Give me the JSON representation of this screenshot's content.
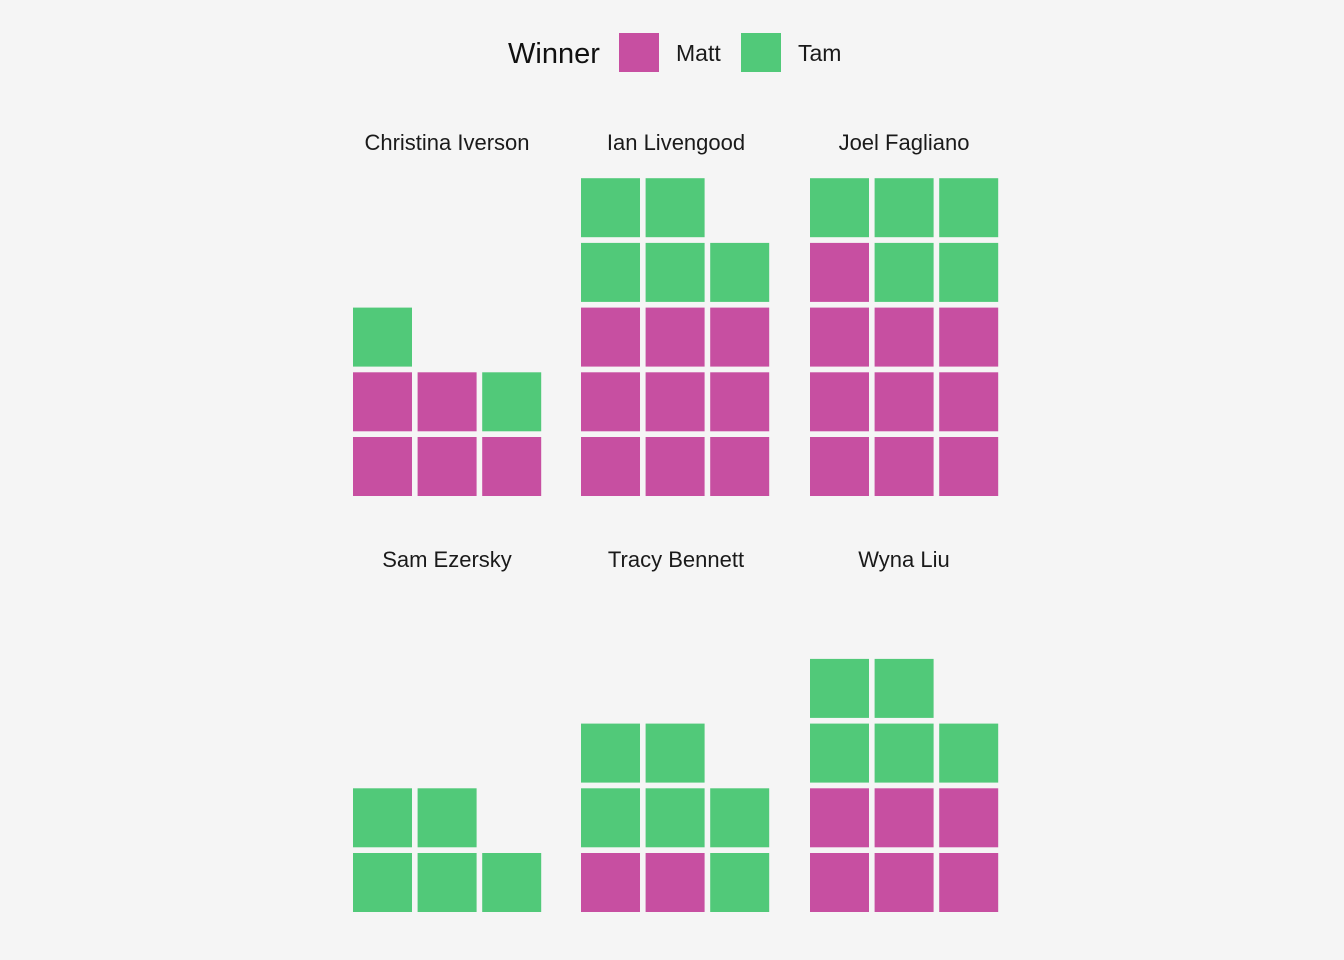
{
  "chart_data": {
    "type": "waffle",
    "legend": {
      "title": "Winner",
      "placement": "top",
      "entries": [
        {
          "name": "Matt",
          "color": "#c74fa1"
        },
        {
          "name": "Tam",
          "color": "#51c979"
        }
      ]
    },
    "columns_per_waffle": 3,
    "facet_layout": {
      "rows": 2,
      "cols": 3
    },
    "facets": [
      {
        "name": "Christina Iverson",
        "counts": {
          "Matt": 5,
          "Tam": 2
        }
      },
      {
        "name": "Ian Livengood",
        "counts": {
          "Matt": 9,
          "Tam": 5
        }
      },
      {
        "name": "Joel Fagliano",
        "counts": {
          "Matt": 10,
          "Tam": 5
        }
      },
      {
        "name": "Sam Ezersky",
        "counts": {
          "Matt": 0,
          "Tam": 5
        }
      },
      {
        "name": "Tracy Bennett",
        "counts": {
          "Matt": 2,
          "Tam": 6
        }
      },
      {
        "name": "Wyna Liu",
        "counts": {
          "Matt": 6,
          "Tam": 5
        }
      }
    ]
  }
}
